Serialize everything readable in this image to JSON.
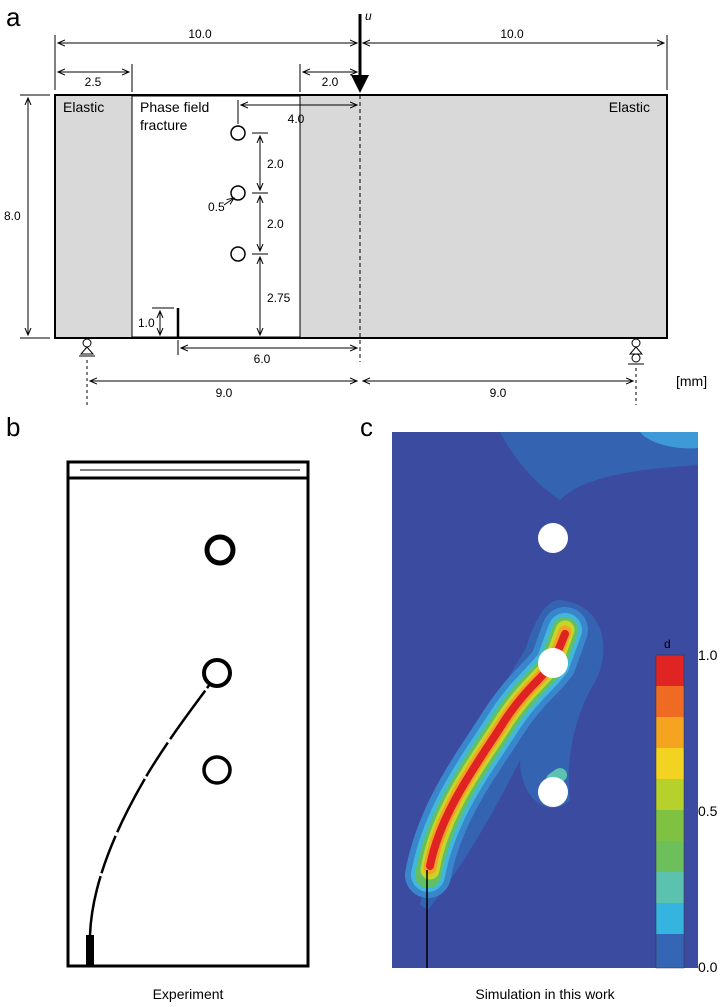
{
  "panel_a": {
    "label": "a",
    "load": "u",
    "regions": {
      "left": "Elastic",
      "middle": [
        "Phase field",
        "fracture"
      ],
      "right": "Elastic"
    },
    "dimensions": {
      "left_span": "10.0",
      "right_span": "10.0",
      "elastic_width": "2.5",
      "load_offset": "2.0",
      "hole_offset": "4.0",
      "hole_spacing_top": "2.0",
      "hole_spacing_mid": "2.0",
      "hole_diameter": "0.5",
      "hole_bottom": "2.75",
      "height": "8.0",
      "notch": "1.0",
      "notch_offset": "6.0",
      "support_left": "9.0",
      "support_right": "9.0"
    },
    "unit": "[mm]"
  },
  "panel_b": {
    "label": "b",
    "caption": "Experiment"
  },
  "panel_c": {
    "label": "c",
    "caption": "Simulation in this work",
    "colorbar": {
      "title": "d",
      "ticks": [
        "1.0",
        "0.5",
        "0.0"
      ]
    }
  }
}
